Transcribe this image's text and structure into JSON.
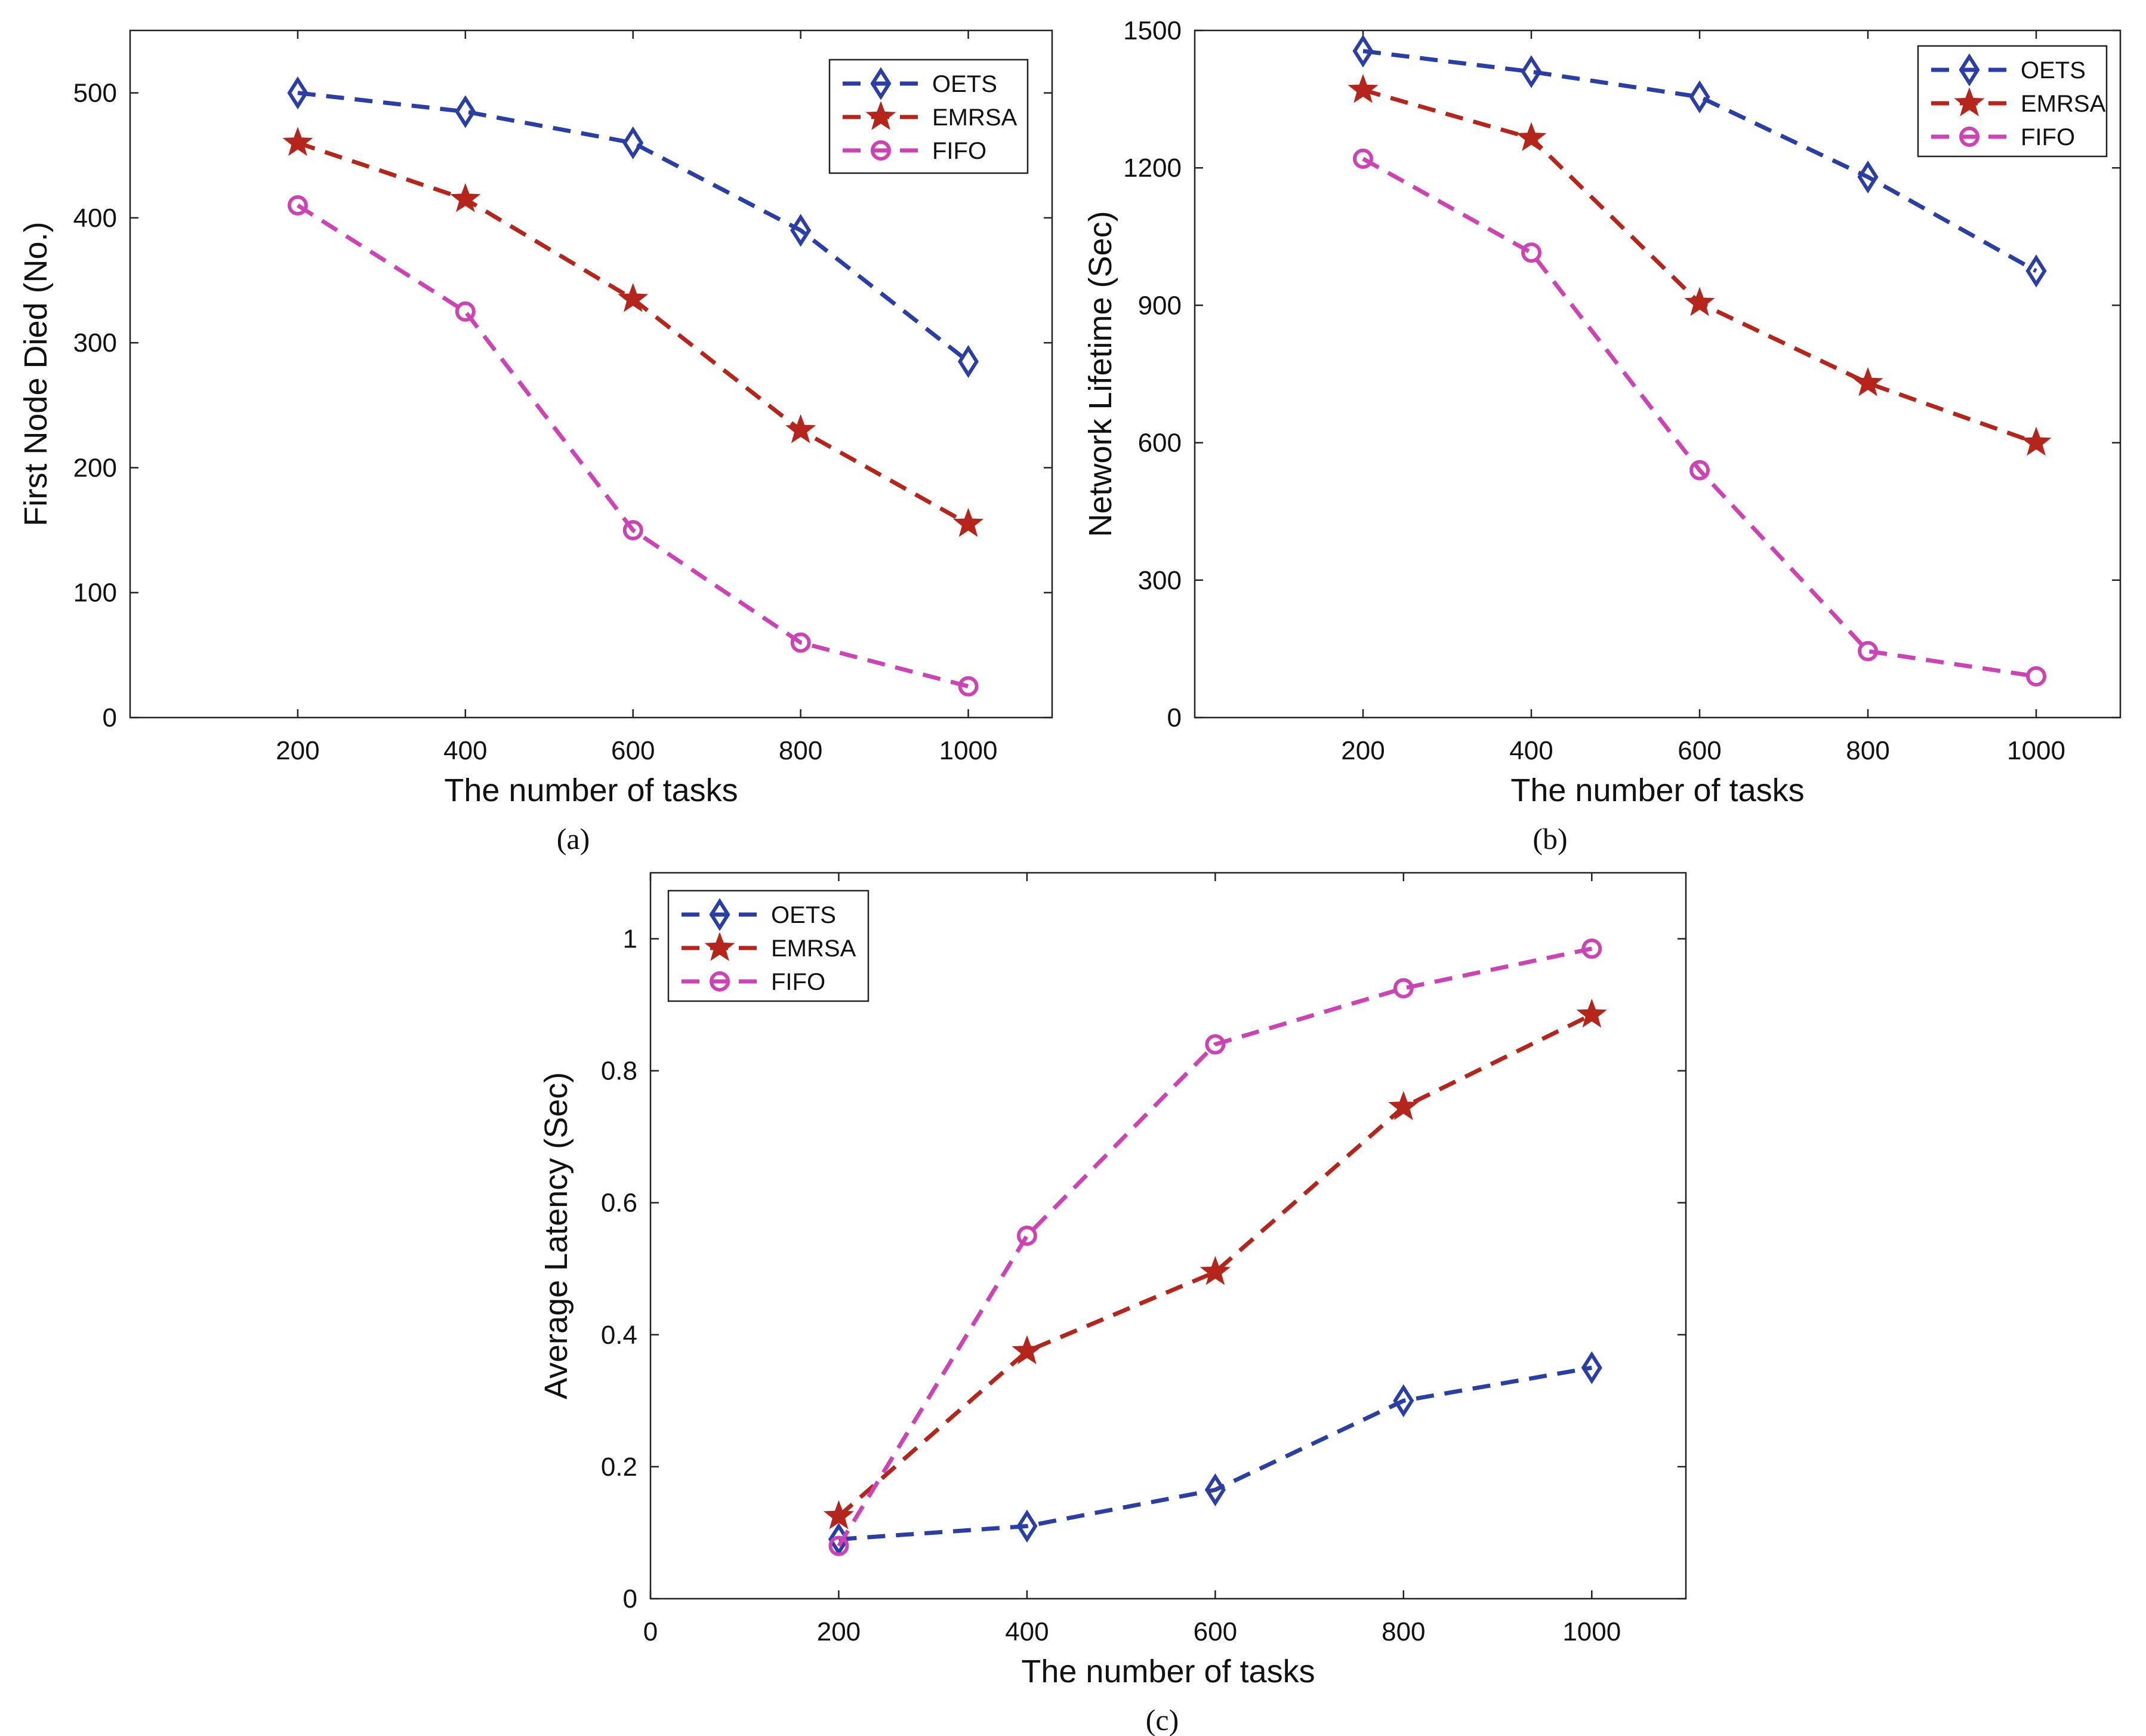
{
  "colors": {
    "OETS": "#2b3ea6",
    "EMRSA": "#b5251c",
    "FIFO": "#cc44b4"
  },
  "chart_data": [
    {
      "type": "line",
      "caption": "(a)",
      "xlabel": "The number of tasks",
      "ylabel": "First Node Died (No.)",
      "xlim": [
        0,
        1100
      ],
      "ylim": [
        0,
        550
      ],
      "x_ticks": [
        200,
        400,
        600,
        800,
        1000
      ],
      "y_ticks": [
        0,
        100,
        200,
        300,
        400,
        500
      ],
      "legend": "top-right",
      "x": [
        200,
        400,
        600,
        800,
        1000
      ],
      "series": [
        {
          "name": "OETS",
          "marker": "diamond",
          "values": [
            500,
            485,
            460,
            390,
            285
          ]
        },
        {
          "name": "EMRSA",
          "marker": "star",
          "values": [
            460,
            415,
            335,
            230,
            155
          ]
        },
        {
          "name": "FIFO",
          "marker": "circle",
          "values": [
            410,
            325,
            150,
            60,
            25
          ]
        }
      ]
    },
    {
      "type": "line",
      "caption": "(b)",
      "xlabel": "The number of tasks",
      "ylabel": "Network Lifetime (Sec)",
      "xlim": [
        0,
        1100
      ],
      "ylim": [
        0,
        1500
      ],
      "x_ticks": [
        200,
        400,
        600,
        800,
        1000
      ],
      "y_ticks": [
        0,
        300,
        600,
        900,
        1200,
        1500
      ],
      "legend": "top-right",
      "x": [
        200,
        400,
        600,
        800,
        1000
      ],
      "series": [
        {
          "name": "OETS",
          "marker": "diamond",
          "values": [
            1455,
            1410,
            1355,
            1180,
            975
          ]
        },
        {
          "name": "EMRSA",
          "marker": "star",
          "values": [
            1370,
            1265,
            905,
            730,
            600
          ]
        },
        {
          "name": "FIFO",
          "marker": "circle",
          "values": [
            1220,
            1015,
            540,
            145,
            90
          ]
        }
      ]
    },
    {
      "type": "line",
      "caption": "(c)",
      "xlabel": "The number of tasks",
      "ylabel": "Average Latency (Sec)",
      "xlim": [
        0,
        1100
      ],
      "ylim": [
        0,
        1.1
      ],
      "x_ticks": [
        0,
        200,
        400,
        600,
        800,
        1000
      ],
      "y_ticks": [
        0,
        0.2,
        0.4,
        0.6,
        0.8,
        1
      ],
      "legend": "top-left",
      "x": [
        200,
        400,
        600,
        800,
        1000
      ],
      "series": [
        {
          "name": "OETS",
          "marker": "diamond",
          "values": [
            0.09,
            0.11,
            0.165,
            0.3,
            0.35
          ]
        },
        {
          "name": "EMRSA",
          "marker": "star",
          "values": [
            0.125,
            0.375,
            0.495,
            0.745,
            0.885
          ]
        },
        {
          "name": "FIFO",
          "marker": "circle",
          "values": [
            0.08,
            0.55,
            0.84,
            0.925,
            0.985
          ]
        }
      ]
    }
  ]
}
